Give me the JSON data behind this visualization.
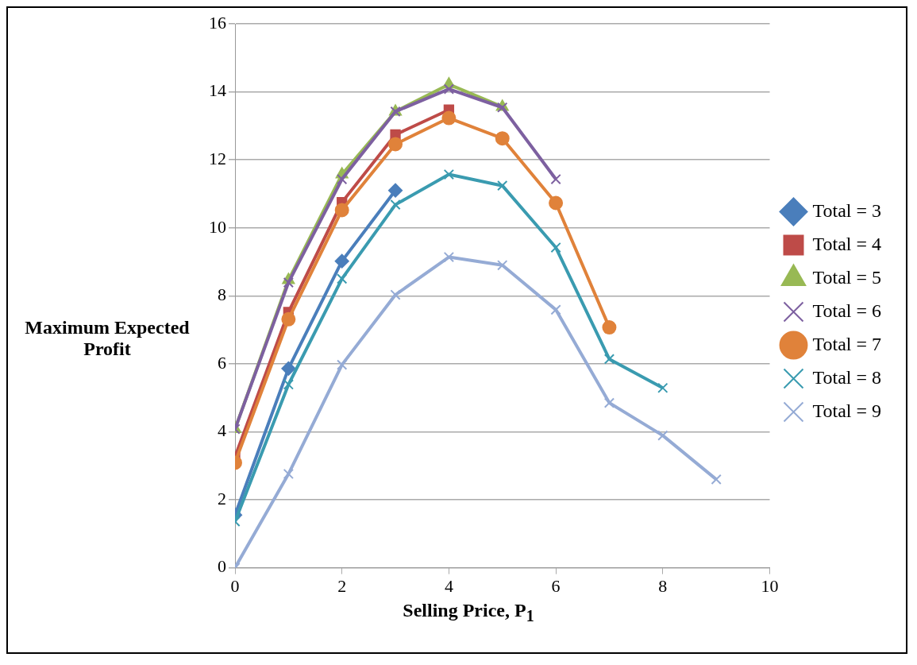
{
  "chart_data": {
    "type": "line",
    "xlabel": "Selling Price, P$_{1}$",
    "ylabel": "Maximum Expected Profit",
    "xlim": [
      0,
      10
    ],
    "xticks": [
      0,
      2,
      4,
      6,
      8,
      10
    ],
    "ylim": [
      0,
      16
    ],
    "yticks": [
      0,
      2,
      4,
      6,
      8,
      10,
      12,
      14,
      16
    ],
    "grid": "y",
    "legend": "right",
    "line_style": "solid",
    "series": [
      {
        "name": "Total = 3",
        "color": "#4a7ebb",
        "marker": "diamond",
        "x": [
          0,
          1,
          2,
          3
        ],
        "values": [
          1.55,
          5.86,
          9.02,
          11.1
        ]
      },
      {
        "name": "Total = 4",
        "color": "#be4b48",
        "marker": "square",
        "x": [
          0,
          1,
          2,
          3,
          4
        ],
        "values": [
          3.26,
          7.52,
          10.75,
          12.74,
          13.47
        ]
      },
      {
        "name": "Total = 5",
        "color": "#98b954",
        "marker": "triangle",
        "x": [
          0,
          1,
          2,
          3,
          4,
          5
        ],
        "values": [
          4.08,
          8.46,
          11.57,
          13.42,
          14.22,
          13.56
        ]
      },
      {
        "name": "Total = 6",
        "color": "#7d60a0",
        "marker": "cross",
        "x": [
          0,
          1,
          2,
          3,
          4,
          5,
          6
        ],
        "values": [
          4.08,
          8.39,
          11.43,
          13.42,
          14.08,
          13.54,
          11.43
        ]
      },
      {
        "name": "Total = 7",
        "color": "#e0823a",
        "marker": "circle",
        "x": [
          0,
          1,
          2,
          3,
          4,
          5,
          6,
          7
        ],
        "values": [
          3.09,
          7.31,
          10.52,
          12.46,
          13.23,
          12.63,
          10.73,
          7.07
        ]
      },
      {
        "name": "Total = 8",
        "color": "#3a9bb0",
        "marker": "cross",
        "x": [
          0,
          1,
          2,
          3,
          4,
          5,
          6,
          7,
          8
        ],
        "values": [
          1.36,
          5.39,
          8.5,
          10.68,
          11.57,
          11.24,
          9.42,
          6.14,
          5.29
        ]
      },
      {
        "name": "Total = 9",
        "color": "#95abd5",
        "marker": "cross",
        "x": [
          0,
          1,
          2,
          3,
          4,
          5,
          6,
          7,
          8,
          9
        ],
        "values": [
          0,
          2.76,
          5.97,
          8.03,
          9.14,
          8.9,
          7.59,
          4.85,
          3.89,
          2.6
        ]
      }
    ]
  }
}
